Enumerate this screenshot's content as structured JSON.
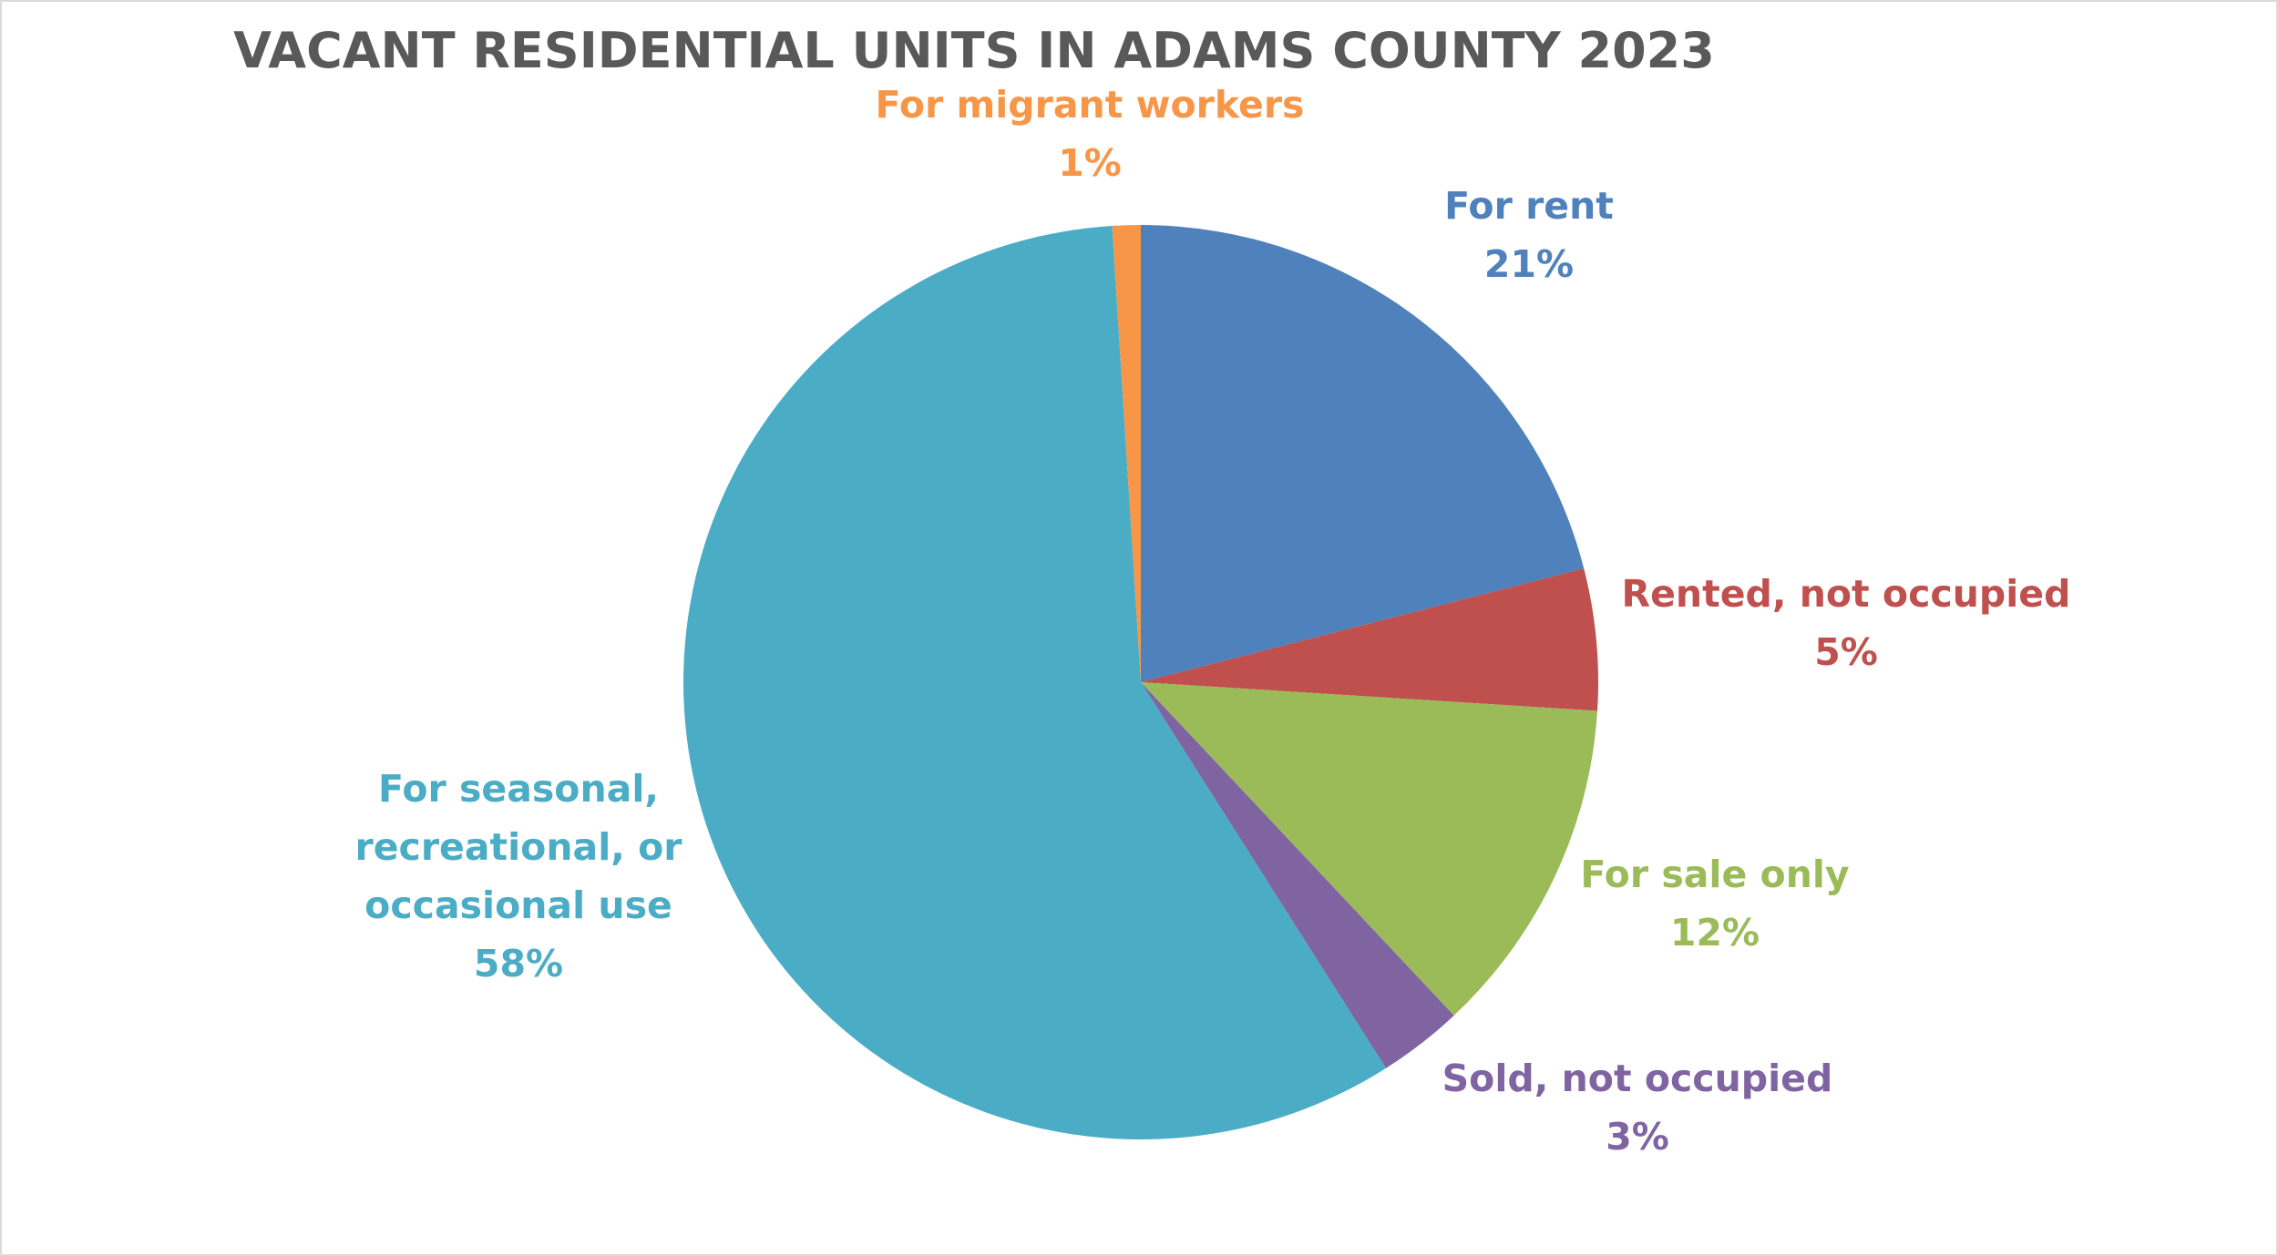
{
  "chart_data": {
    "type": "pie",
    "title": "VACANT RESIDENTIAL UNITS IN ADAMS COUNTY 2023",
    "slices": [
      {
        "name": "For rent",
        "value": 21,
        "label": "21%",
        "color": "#4f81bd"
      },
      {
        "name": "Rented, not occupied",
        "value": 5,
        "label": "5%",
        "color": "#c0504d"
      },
      {
        "name": "For sale only",
        "value": 12,
        "label": "12%",
        "color": "#9bbb59"
      },
      {
        "name": "Sold, not occupied",
        "value": 3,
        "label": "3%",
        "color": "#8064a2"
      },
      {
        "name": "For seasonal, recreational, or occasional use",
        "value": 58,
        "label": "58%",
        "color": "#4bacc6"
      },
      {
        "name": "For migrant workers",
        "value": 1,
        "label": "1%",
        "color": "#f79646"
      }
    ],
    "start_angle": "12 o'clock",
    "direction": "clockwise",
    "legend": "none",
    "data_labels": "category name and percentage, outside slices"
  }
}
